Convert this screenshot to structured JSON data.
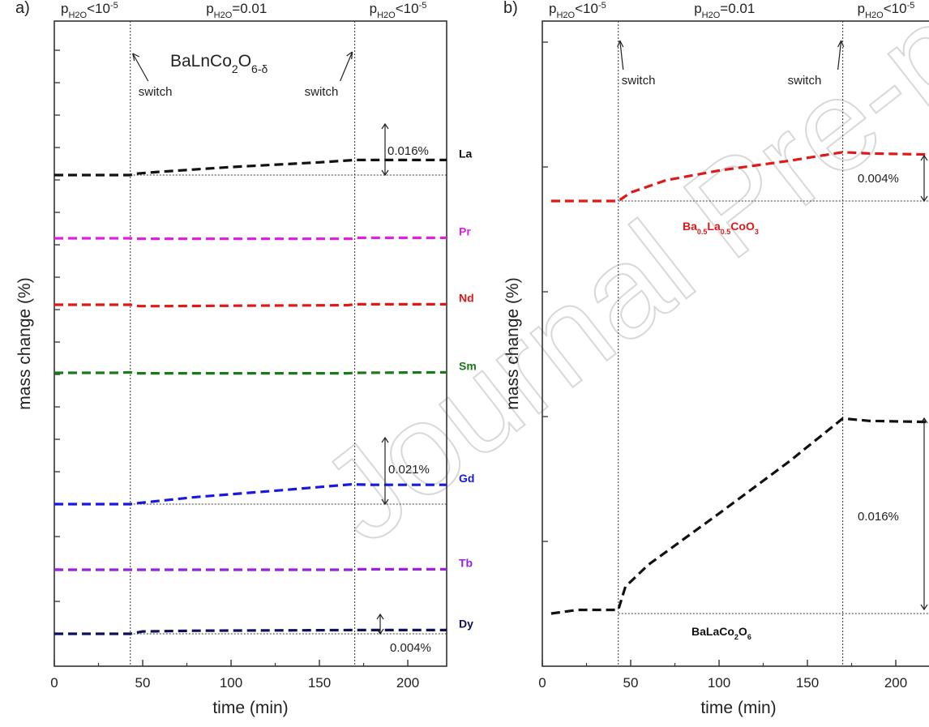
{
  "colors": {
    "black": "#111111",
    "magenta": "#e020e0",
    "red": "#e01818",
    "green": "#1a7a1a",
    "blue": "#1818e0",
    "violet": "#9a20e0",
    "navy": "#10105a",
    "red_label": "#e01818"
  },
  "watermark": "Journal Pre-proof",
  "chart_data": [
    {
      "panel": "a)",
      "type": "line",
      "xlabel": "time (min)",
      "ylabel": "mass change (%)",
      "xlim": [
        0,
        222
      ],
      "xticks": [
        "0",
        "50",
        "100",
        "150",
        "200"
      ],
      "xtick_values": [
        0,
        50,
        100,
        150,
        200
      ],
      "switch_times": [
        43,
        170
      ],
      "conditions": [
        {
          "p": "p",
          "sub": "H2O",
          "rest": "<10",
          "sup": "-5"
        },
        {
          "p": "p",
          "sub": "H2O",
          "rest": "=0.01",
          "sup": ""
        },
        {
          "p": "p",
          "sub": "H2O",
          "rest": "<10",
          "sup": "-5"
        }
      ],
      "title_main": "BaLnCo",
      "title_sub1": "2",
      "title_mid": "O",
      "title_sub2": "6-δ",
      "switch_label": "switch",
      "series": [
        {
          "name": "La",
          "color": "#111111",
          "points": [
            [
              0,
              0.0
            ],
            [
              43,
              0.0
            ],
            [
              46,
              0.0015
            ],
            [
              60,
              0.0035
            ],
            [
              100,
              0.0085
            ],
            [
              150,
              0.0135
            ],
            [
              170,
              0.016
            ],
            [
              180,
              0.016
            ],
            [
              222,
              0.016
            ]
          ],
          "offset": 8.05
        },
        {
          "name": "Pr",
          "color": "#e020e0",
          "points": [
            [
              0,
              0.0
            ],
            [
              43,
              0.0
            ],
            [
              46,
              -0.0005
            ],
            [
              100,
              -0.0005
            ],
            [
              168,
              -0.0005
            ],
            [
              170,
              0.0005
            ],
            [
              222,
              0.0005
            ]
          ],
          "offset": 7.3
        },
        {
          "name": "Nd",
          "color": "#e01818",
          "points": [
            [
              0,
              0.0
            ],
            [
              43,
              0.0
            ],
            [
              48,
              -0.0015
            ],
            [
              60,
              -0.0015
            ],
            [
              100,
              -0.001
            ],
            [
              166,
              -0.0005
            ],
            [
              170,
              0.0005
            ],
            [
              222,
              0.0005
            ]
          ],
          "offset": 6.45
        },
        {
          "name": "Sm",
          "color": "#1a7a1a",
          "points": [
            [
              0,
              0.0
            ],
            [
              35,
              0.0
            ],
            [
              43,
              0.0005
            ],
            [
              46,
              -0.0005
            ],
            [
              100,
              -0.0005
            ],
            [
              166,
              -0.0005
            ],
            [
              170,
              0.0
            ],
            [
              222,
              0.0005
            ]
          ],
          "offset": 5.6
        },
        {
          "name": "Gd",
          "color": "#1818e0",
          "points": [
            [
              0,
              0.0
            ],
            [
              43,
              0.0
            ],
            [
              48,
              0.0012
            ],
            [
              80,
              0.0075
            ],
            [
              130,
              0.015
            ],
            [
              168,
              0.021
            ],
            [
              180,
              0.0205
            ],
            [
              222,
              0.0205
            ]
          ],
          "offset": 2.8
        },
        {
          "name": "Tb",
          "color": "#9a20e0",
          "points": [
            [
              0,
              0.0
            ],
            [
              43,
              0.0
            ],
            [
              100,
              0.0
            ],
            [
              168,
              0.0
            ],
            [
              172,
              0.0005
            ],
            [
              222,
              0.0005
            ]
          ],
          "offset": 2.1
        },
        {
          "name": "Dy",
          "color": "#10105a",
          "points": [
            [
              0,
              0.0
            ],
            [
              43,
              0.0
            ],
            [
              50,
              0.0025
            ],
            [
              80,
              0.0033
            ],
            [
              170,
              0.004
            ],
            [
              222,
              0.004
            ]
          ],
          "offset": 1.3
        }
      ],
      "annotations": [
        {
          "text": "0.016%",
          "series": "La"
        },
        {
          "text": "0.021%",
          "series": "Gd"
        },
        {
          "text": "0.004%",
          "series": "Dy"
        }
      ],
      "grid": false
    },
    {
      "panel": "b)",
      "type": "line",
      "xlabel": "time (min)",
      "ylabel": "mass change (%)",
      "xlim": [
        0,
        222
      ],
      "xticks": [
        "0",
        "50",
        "100",
        "150",
        "200"
      ],
      "xtick_values": [
        0,
        50,
        100,
        150,
        200
      ],
      "switch_times": [
        43,
        170
      ],
      "conditions": [
        {
          "p": "p",
          "sub": "H2O",
          "rest": "<10",
          "sup": "-5"
        },
        {
          "p": "p",
          "sub": "H2O",
          "rest": "=0.01",
          "sup": ""
        },
        {
          "p": "p",
          "sub": "H2O",
          "rest": "<10",
          "sup": "-5"
        }
      ],
      "switch_label": "switch",
      "series": [
        {
          "name": "Ba0.5La0.5CoO3",
          "color": "#e01818",
          "points": [
            [
              5,
              0.0
            ],
            [
              43,
              0.0
            ],
            [
              50,
              0.0007
            ],
            [
              70,
              0.0017
            ],
            [
              100,
              0.0025
            ],
            [
              140,
              0.0033
            ],
            [
              170,
              0.004
            ],
            [
              185,
              0.0039
            ],
            [
              222,
              0.0038
            ]
          ],
          "offset": 3.35
        },
        {
          "name": "BaLaCo2O6",
          "color": "#111111",
          "points": [
            [
              5,
              0.0
            ],
            [
              20,
              0.0003
            ],
            [
              43,
              0.0003
            ],
            [
              47,
              0.0022
            ],
            [
              60,
              0.004
            ],
            [
              100,
              0.0082
            ],
            [
              140,
              0.0125
            ],
            [
              170,
              0.016
            ],
            [
              185,
              0.0158
            ],
            [
              222,
              0.0157
            ]
          ],
          "offset": 0.45
        }
      ],
      "label_bl": {
        "main": "Ba",
        "s1": "0.5",
        "m2": "La",
        "s2": "0.5",
        "m3": "CoO",
        "s3": "3"
      },
      "label_blc": {
        "main": "BaLaCo",
        "s1": "2",
        "m2": "O",
        "s2": "6"
      },
      "annotations": [
        {
          "text": "0.004%",
          "series": "Ba0.5La0.5CoO3"
        },
        {
          "text": "0.016%",
          "series": "BaLaCo2O6"
        }
      ],
      "grid": false
    }
  ]
}
